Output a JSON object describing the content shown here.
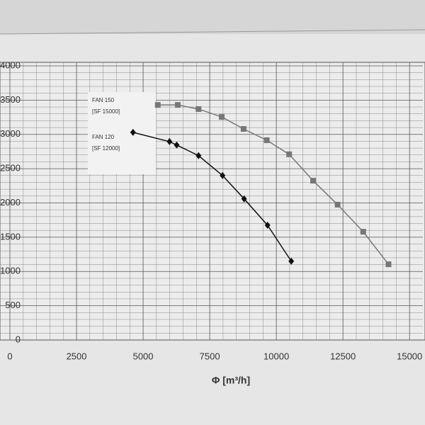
{
  "chart_data": {
    "type": "line",
    "x_label": "Φ [m³/h]",
    "series": [
      {
        "name": "FAN 150",
        "model": "[SF 15000]",
        "color": "#777777",
        "marker": "square",
        "x": [
          5550,
          6300,
          7080,
          7950,
          8770,
          9640,
          10480,
          11380,
          12300,
          13260,
          14210
        ],
        "values": [
          3430,
          3430,
          3370,
          3255,
          3080,
          2915,
          2710,
          2325,
          1975,
          1580,
          1105
        ]
      },
      {
        "name": "FAN 120",
        "model": "[SF 12000]",
        "color": "#111111",
        "marker": "diamond",
        "x": [
          4620,
          5990,
          6260,
          7080,
          7980,
          8790,
          9670,
          10560
        ],
        "values": [
          3030,
          2895,
          2845,
          2690,
          2400,
          2060,
          1675,
          1150
        ]
      }
    ],
    "xlim": [
      0,
      15500
    ],
    "xticks": [
      0,
      2500,
      5000,
      7500,
      10000,
      12500,
      15000
    ],
    "ylim": [
      0,
      4000
    ],
    "yticks": [
      0,
      500,
      1000,
      1500,
      2000,
      2500,
      3000,
      3500,
      4000
    ],
    "grid": true
  }
}
